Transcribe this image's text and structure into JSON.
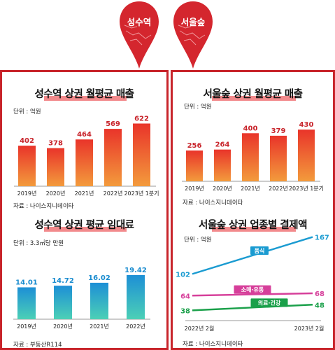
{
  "pins": [
    {
      "label": "성수역"
    },
    {
      "label": "서울숲"
    }
  ],
  "panels": {
    "p1": {
      "title": "성수역 상권 월평균 매출",
      "unit": "단위 : 억원",
      "source": "자료 : 나이스지니데이타"
    },
    "p2": {
      "title": "성수역 상권 평균 임대료",
      "unit": "단위 : 3.3㎡당 만원",
      "source": "자료 : 부동산R114"
    },
    "p3": {
      "title": "서울숲 상권 월평균 매출",
      "unit": "단위 : 억원",
      "source": "자료 : 나이스지니데이타"
    },
    "p4": {
      "title": "서울숲 상권 업종별 결제액",
      "unit": "단위 : 억원",
      "source": "자료 : 나이스지니데이타"
    }
  },
  "colors": {
    "frame": "#c8242b",
    "bar_red_top": "#e9342a",
    "bar_red_bottom": "#f39b3c",
    "bar_blue_top": "#1d8fd6",
    "bar_blue_bottom": "#4cd0b6",
    "line_blue": "#1a9bd1",
    "line_pink": "#d63f9a",
    "line_green": "#1aa04a"
  },
  "chart_data": [
    {
      "type": "bar",
      "title": "성수역 상권 월평균 매출",
      "categories": [
        "2019년",
        "2020년",
        "2021년",
        "2022년",
        "2023년 1분기"
      ],
      "values": [
        402,
        378,
        464,
        569,
        622
      ],
      "ylim": [
        0,
        660
      ]
    },
    {
      "type": "bar",
      "title": "성수역 상권 평균 임대료",
      "categories": [
        "2019년",
        "2020년",
        "2021년",
        "2022년"
      ],
      "values": [
        14.01,
        14.72,
        16.02,
        19.42
      ],
      "ylim": [
        0,
        20
      ]
    },
    {
      "type": "bar",
      "title": "서울숲 상권 월평균 매출",
      "categories": [
        "2019년",
        "2020년",
        "2021년",
        "2022년",
        "2023년 1분기"
      ],
      "values": [
        256,
        264,
        400,
        379,
        430
      ],
      "ylim": [
        0,
        460
      ]
    },
    {
      "type": "line",
      "title": "서울숲 상권 업종별 결제액",
      "x": [
        "2022년 2월",
        "2023년 2월"
      ],
      "series": [
        {
          "name": "음식",
          "values": [
            102,
            167
          ]
        },
        {
          "name": "소매·유통",
          "values": [
            64,
            68
          ]
        },
        {
          "name": "의료·건강",
          "values": [
            38,
            48
          ]
        }
      ],
      "ylim": [
        20,
        180
      ]
    }
  ]
}
